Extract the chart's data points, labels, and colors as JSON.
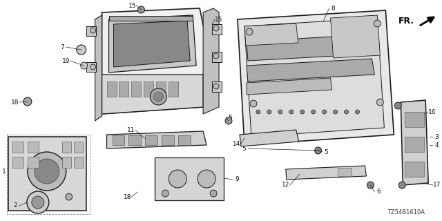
{
  "bg_color": "#ffffff",
  "fig_width": 6.4,
  "fig_height": 3.2,
  "dpi": 100,
  "watermark": "TZ54B1610A",
  "line_color": "#1a1a1a",
  "text_color": "#111111",
  "font_size": 6.5,
  "lw_main": 1.0,
  "lw_thin": 0.5,
  "lw_dash": 0.6
}
